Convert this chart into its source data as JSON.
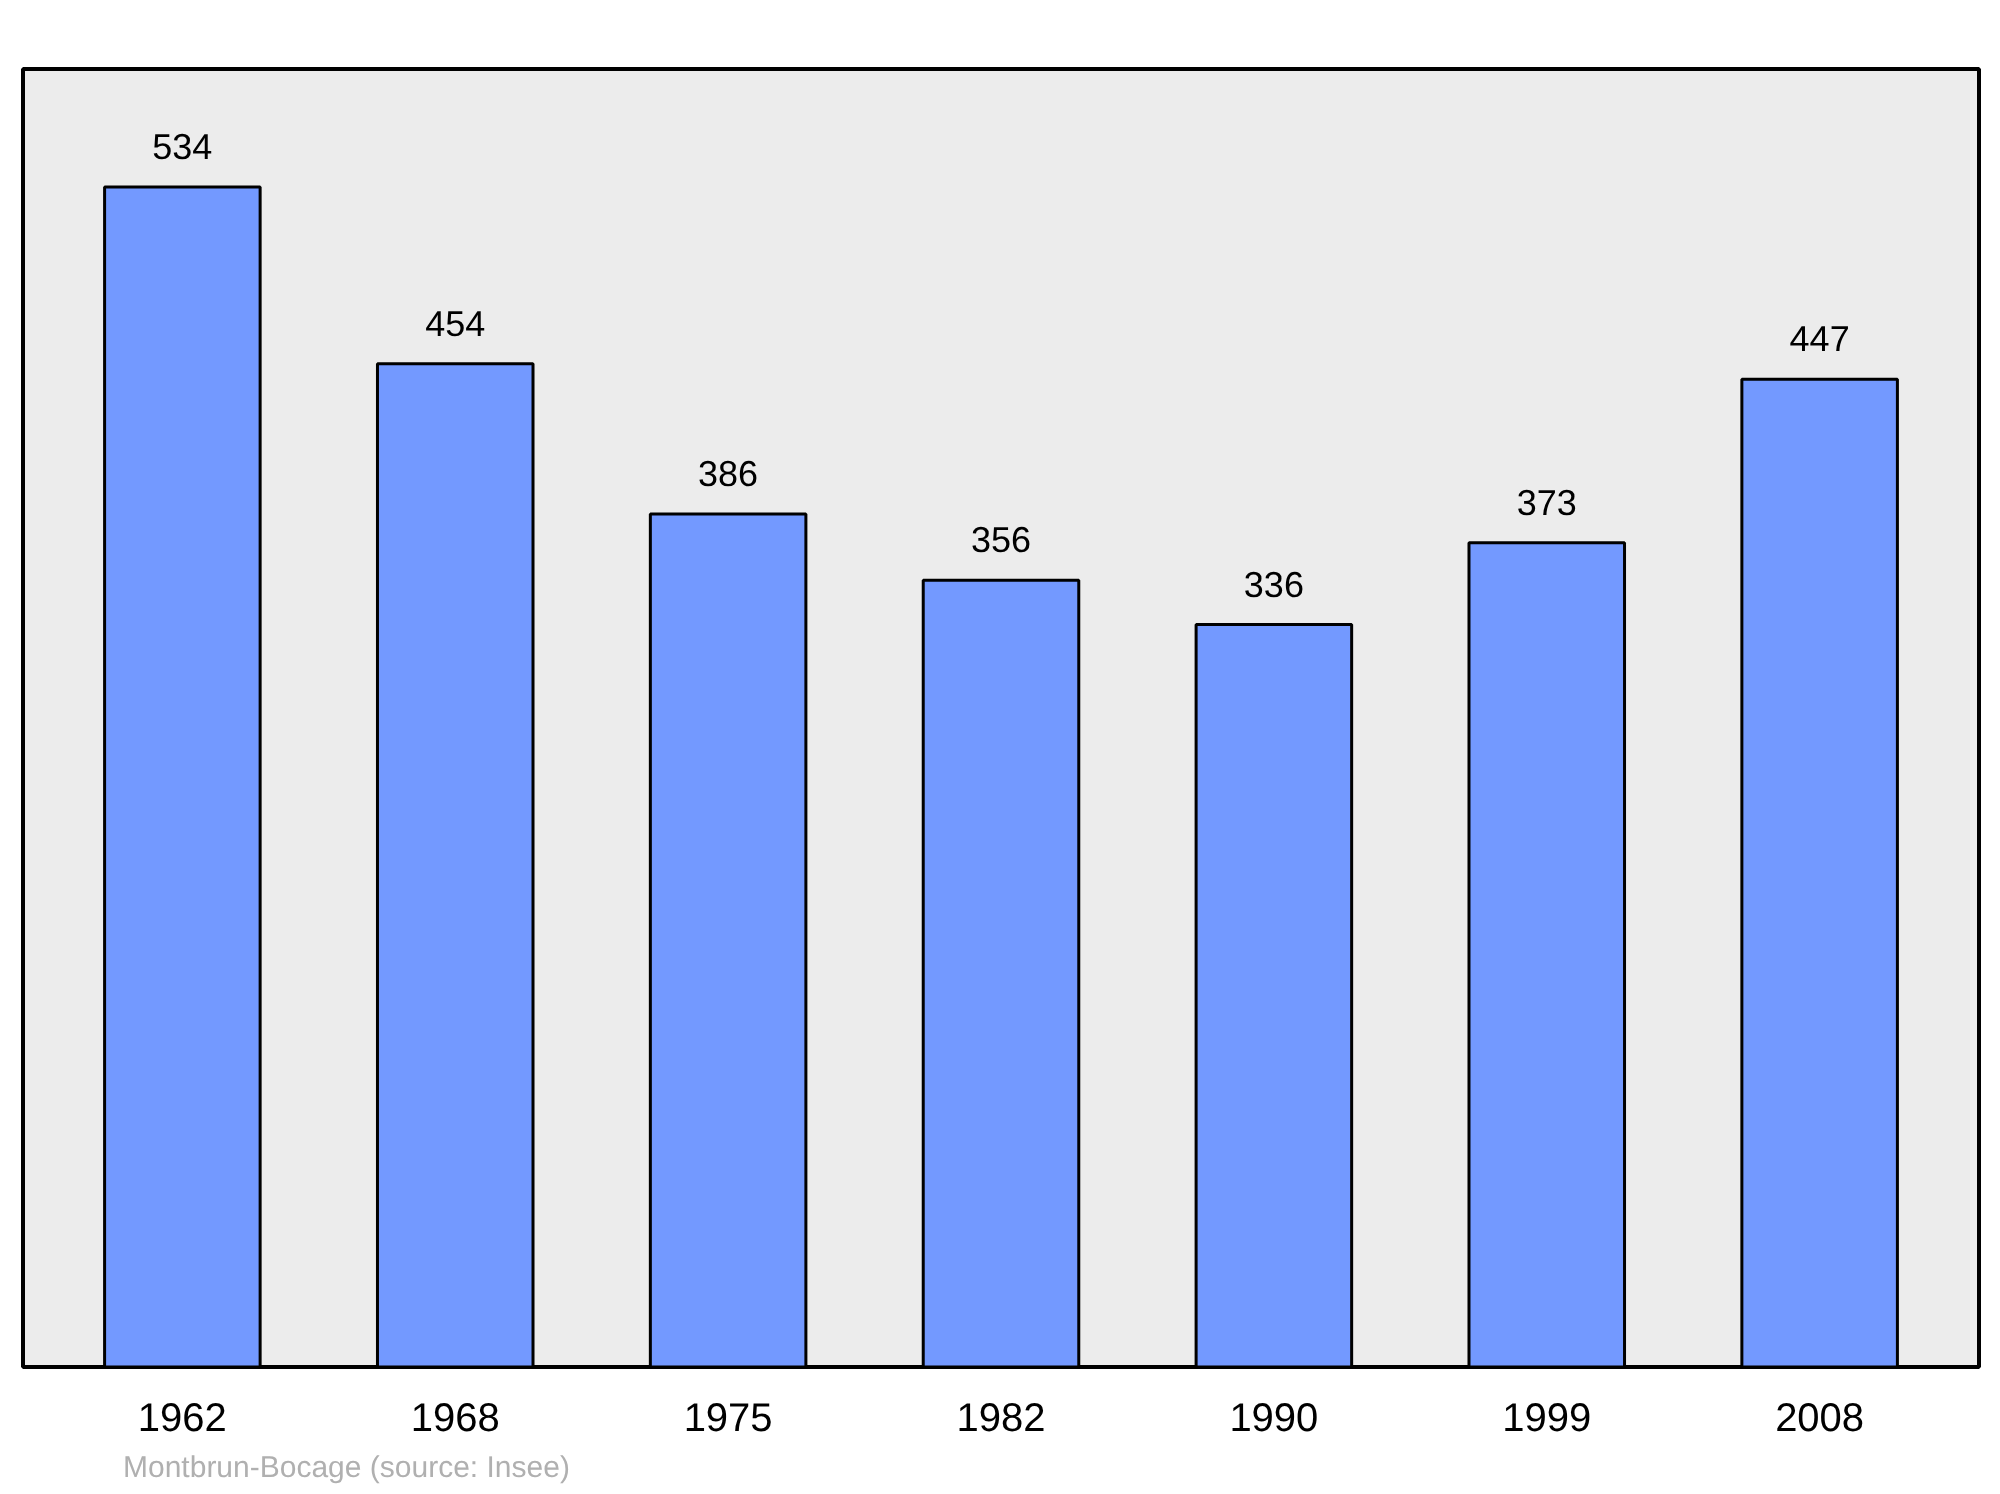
{
  "chart_data": {
    "type": "bar",
    "categories": [
      "1962",
      "1968",
      "1975",
      "1982",
      "1990",
      "1999",
      "2008"
    ],
    "values": [
      534,
      454,
      386,
      356,
      336,
      373,
      447
    ],
    "color": "#7399ff",
    "data_labels": true,
    "annotations": [
      "Montbrun-Bocage    (source: Insee)"
    ]
  }
}
